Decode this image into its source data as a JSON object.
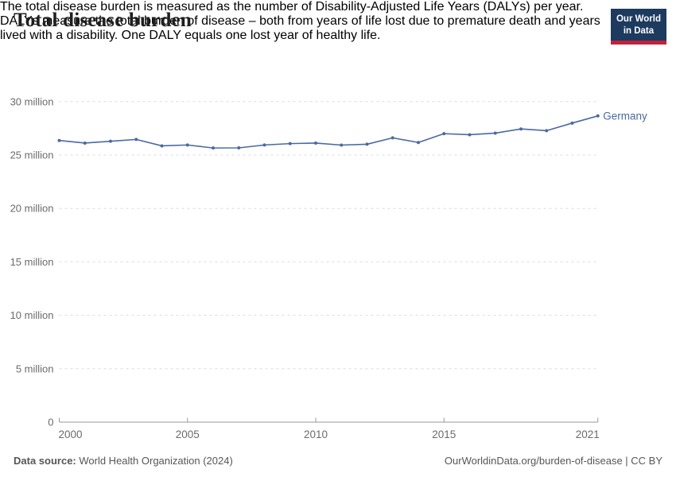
{
  "chart_data": {
    "type": "line",
    "title": "Total disease burden",
    "subtitle_lines": [
      "The total disease burden is measured as the number of Disability-Adjusted Life Years (DALYs) per year.",
      "DALYs measure the total burden of disease – both from years of life lost due to premature death and years",
      "lived with a disability. One DALY equals one lost year of healthy life."
    ],
    "unit": "DALYs per year",
    "x": [
      2000,
      2001,
      2002,
      2003,
      2004,
      2005,
      2006,
      2007,
      2008,
      2009,
      2010,
      2011,
      2012,
      2013,
      2014,
      2015,
      2016,
      2017,
      2018,
      2019,
      2020,
      2021
    ],
    "series": [
      {
        "name": "Germany",
        "values_millions": [
          26.36,
          26.12,
          26.29,
          26.46,
          25.86,
          25.94,
          25.66,
          25.67,
          25.94,
          26.07,
          26.12,
          25.93,
          26.01,
          26.61,
          26.17,
          27.0,
          26.9,
          27.05,
          27.44,
          27.28,
          27.99,
          28.66
        ]
      }
    ],
    "ylim_millions": [
      0,
      30
    ],
    "yticks_millions": [
      0,
      5,
      10,
      15,
      20,
      25,
      30
    ],
    "ytick_labels": [
      "0",
      "5 million",
      "10 million",
      "15 million",
      "20 million",
      "25 million",
      "30 million"
    ],
    "xticks": [
      2000,
      2005,
      2010,
      2015,
      2021
    ],
    "xtick_labels": [
      "2000",
      "2005",
      "2010",
      "2015",
      "2021"
    ],
    "grid": "horizontal-dashed",
    "legend": "end-of-line entity label"
  },
  "logo": {
    "line1": "Our World",
    "line2": "in Data"
  },
  "footer": {
    "datasource_label": "Data source:",
    "datasource_value": " World Health Organization (2024)",
    "attribution": "OurWorldinData.org/burden-of-disease | CC BY"
  },
  "colors": {
    "line": "#4a69a4",
    "title_text": "#1f1f1f",
    "muted_text": "#565656",
    "axis_text": "#6b6b6b",
    "gridline": "#dcdcdc",
    "axis_line": "#9a9a9a",
    "logo_background": "#1d3a5f",
    "logo_stripe": "#c0223b"
  }
}
